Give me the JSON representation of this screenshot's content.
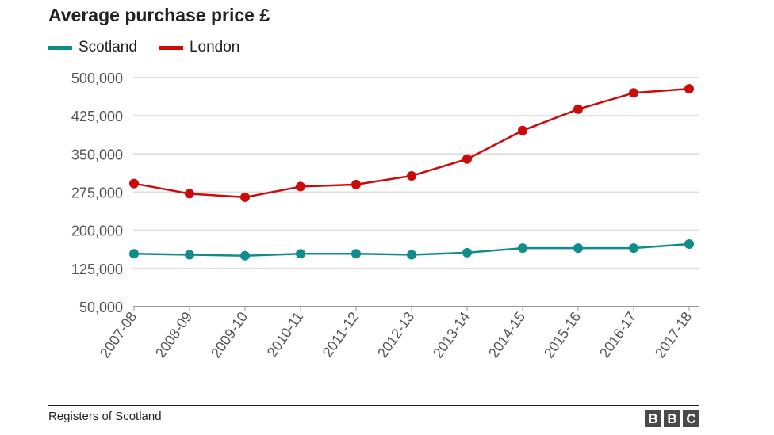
{
  "chart_data": {
    "type": "line",
    "title": "Average purchase price £",
    "xlabel": "",
    "ylabel": "",
    "categories": [
      "2007-08",
      "2008-09",
      "2009-10",
      "2010-11",
      "2011-12",
      "2012-13",
      "2013-14",
      "2014-15",
      "2015-16",
      "2016-17",
      "2017-18"
    ],
    "y_ticks": [
      50000,
      125000,
      200000,
      275000,
      350000,
      425000,
      500000
    ],
    "y_tick_labels": [
      "50,000",
      "125,000",
      "200,000",
      "275,000",
      "350,000",
      "425,000",
      "500,000"
    ],
    "ylim": [
      50000,
      500000
    ],
    "grid": true,
    "legend_position": "top-left",
    "series": [
      {
        "name": "Scotland",
        "color": "#118c8c",
        "values": [
          154000,
          152000,
          150000,
          154000,
          154000,
          152000,
          156000,
          165000,
          165000,
          165000,
          173000
        ]
      },
      {
        "name": "London",
        "color": "#cc0a0a",
        "values": [
          292000,
          272000,
          265000,
          286000,
          290000,
          307000,
          340000,
          396000,
          438000,
          470000,
          478000
        ]
      }
    ]
  },
  "footer": {
    "source": "Registers of Scotland",
    "logo_letters": [
      "B",
      "B",
      "C"
    ]
  }
}
